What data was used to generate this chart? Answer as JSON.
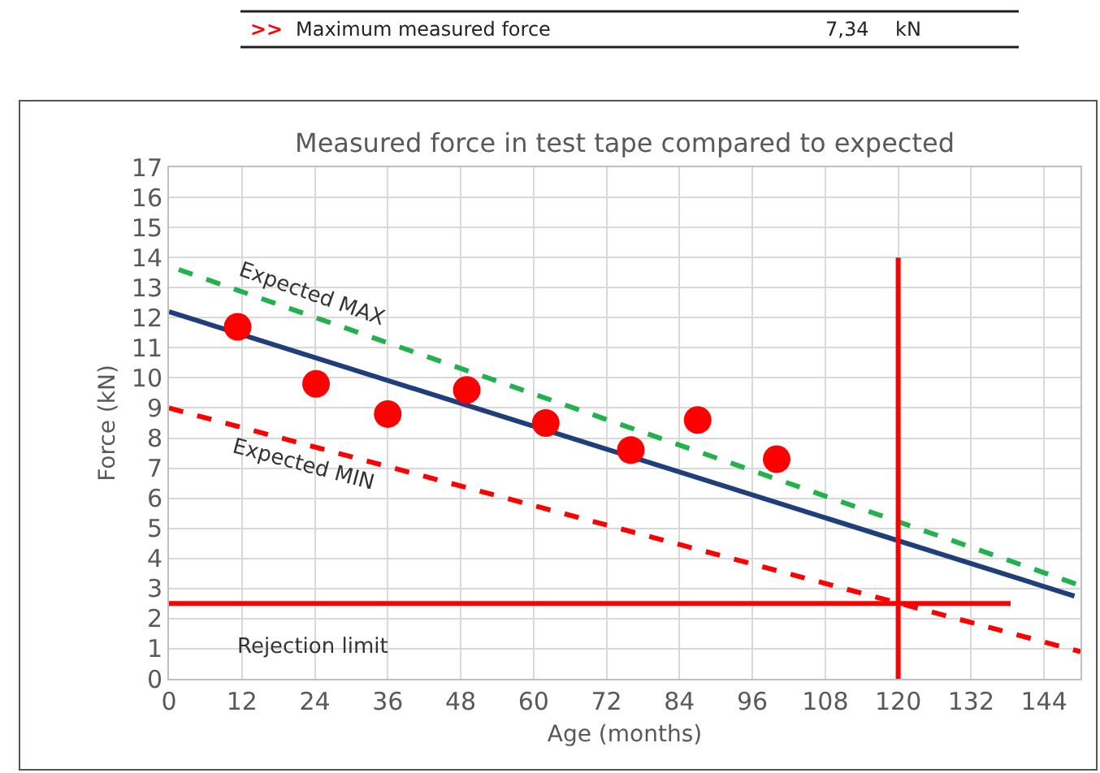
{
  "chart_data": {
    "type": "scatter",
    "title": "Measured force in test tape compared to expected",
    "xlabel": "Age (months)",
    "ylabel": "Force (kN)",
    "annotations": [
      ">>",
      "Maximum measured force",
      "7,34",
      "kN"
    ],
    "xlim": [
      0,
      150
    ],
    "ylim": [
      0,
      17
    ],
    "xticks": [
      0,
      12,
      24,
      36,
      48,
      60,
      72,
      84,
      96,
      108,
      120,
      132,
      144
    ],
    "yticks": [
      0,
      1,
      2,
      3,
      4,
      5,
      6,
      7,
      8,
      9,
      10,
      11,
      12,
      13,
      14,
      15,
      16,
      17
    ],
    "grid": true,
    "series": [
      {
        "type": "line",
        "name": "Expected MAX",
        "color": "#22b14c",
        "line_style": "dashed",
        "x": [
          1.6,
          150
        ],
        "values": [
          13.6,
          3.1
        ]
      },
      {
        "type": "line",
        "name": "Expected MIN",
        "color": "#ff0000",
        "line_style": "dashed",
        "x": [
          0,
          150
        ],
        "values": [
          9.0,
          0.9
        ]
      },
      {
        "type": "line",
        "color": "#1f3f7a",
        "line_style": "solid",
        "x": [
          0,
          149
        ],
        "values": [
          12.2,
          2.75
        ]
      },
      {
        "type": "line",
        "name": "Rejection limit",
        "color": "#ff0000",
        "line_style": "solid",
        "x": [
          0,
          138.5
        ],
        "values": [
          2.5,
          2.5
        ]
      },
      {
        "type": "line",
        "color": "#ff0000",
        "line_style": "solid",
        "x": [
          120,
          120
        ],
        "values": [
          0,
          14
        ]
      },
      {
        "color": "#ff0000",
        "marker": "circle",
        "x": [
          11.3,
          24.2,
          36,
          49,
          62,
          76,
          87,
          100
        ],
        "values": [
          11.7,
          9.8,
          8.8,
          9.6,
          8.5,
          7.6,
          8.6,
          7.3
        ]
      }
    ]
  }
}
